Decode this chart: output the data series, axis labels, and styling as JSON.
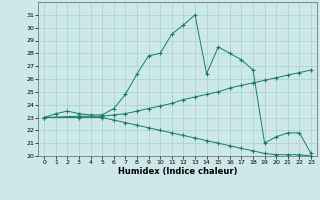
{
  "xlabel": "Humidex (Indice chaleur)",
  "xlim": [
    -0.5,
    23.5
  ],
  "ylim": [
    20,
    32
  ],
  "yticks": [
    20,
    21,
    22,
    23,
    24,
    25,
    26,
    27,
    28,
    29,
    30,
    31
  ],
  "xticks": [
    0,
    1,
    2,
    3,
    4,
    5,
    6,
    7,
    8,
    9,
    10,
    11,
    12,
    13,
    14,
    15,
    16,
    17,
    18,
    19,
    20,
    21,
    22,
    23
  ],
  "bg_color": "#cce8e8",
  "grid_color": "#aacfcf",
  "line_color": "#1a7a6e",
  "line1_x": [
    0,
    1,
    2,
    3,
    4,
    5,
    6,
    7,
    8,
    9,
    10,
    11,
    12,
    13,
    14,
    15,
    16,
    17,
    18,
    19,
    20,
    21,
    22,
    23
  ],
  "line1_y": [
    23.0,
    23.3,
    23.5,
    23.3,
    23.2,
    23.2,
    23.7,
    24.8,
    26.4,
    27.8,
    28.0,
    29.5,
    30.2,
    31.0,
    26.4,
    28.5,
    28.0,
    27.5,
    26.7,
    21.0,
    21.5,
    21.8,
    21.8,
    20.2
  ],
  "line2_x": [
    0,
    3,
    5,
    6,
    7,
    8,
    9,
    10,
    11,
    12,
    13,
    14,
    15,
    16,
    17,
    18,
    19,
    20,
    21,
    22,
    23
  ],
  "line2_y": [
    23.0,
    23.1,
    23.1,
    23.2,
    23.3,
    23.5,
    23.7,
    23.9,
    24.1,
    24.4,
    24.6,
    24.8,
    25.0,
    25.3,
    25.5,
    25.7,
    25.9,
    26.1,
    26.3,
    26.5,
    26.7
  ],
  "line3_x": [
    0,
    3,
    5,
    6,
    7,
    8,
    9,
    10,
    11,
    12,
    13,
    14,
    15,
    16,
    17,
    18,
    19,
    20,
    21,
    22,
    23
  ],
  "line3_y": [
    23.0,
    23.0,
    23.0,
    22.8,
    22.6,
    22.4,
    22.2,
    22.0,
    21.8,
    21.6,
    21.4,
    21.2,
    21.0,
    20.8,
    20.6,
    20.4,
    20.2,
    20.1,
    20.1,
    20.1,
    20.0
  ]
}
